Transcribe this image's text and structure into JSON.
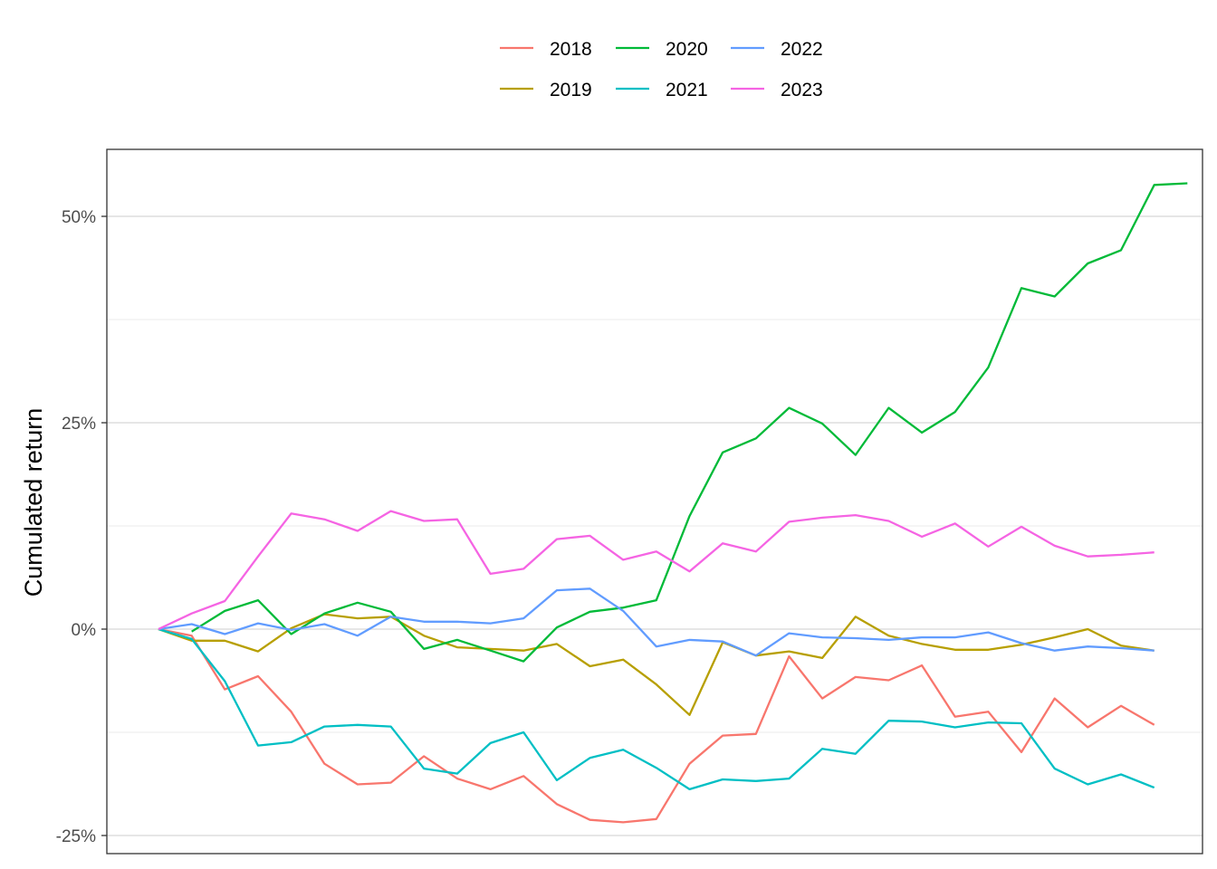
{
  "chart_data": {
    "type": "line",
    "title": "",
    "xlabel": "",
    "ylabel": "Cumulated return",
    "ylim": [
      -0.25,
      0.58
    ],
    "xlim": [
      1,
      31
    ],
    "y_ticks": [
      {
        "value": -0.25,
        "label": "-25%"
      },
      {
        "value": 0,
        "label": "0%"
      },
      {
        "value": 0.25,
        "label": "25%"
      },
      {
        "value": 0.5,
        "label": "50%"
      }
    ],
    "y_minor_gridlines": [
      -0.125,
      0.125,
      0.375
    ],
    "grid": true,
    "x_axis_labels": false,
    "legend": {
      "position": "top",
      "columns": 3
    },
    "series": [
      {
        "name": "2018",
        "color": "#F8766D",
        "x_start": 1,
        "values": [
          0,
          -0.008,
          -0.073,
          -0.057,
          -0.1,
          -0.163,
          -0.188,
          -0.186,
          -0.154,
          -0.181,
          -0.194,
          -0.178,
          -0.212,
          -0.231,
          -0.234,
          -0.23,
          -0.163,
          -0.129,
          -0.127,
          -0.033,
          -0.084,
          -0.058,
          -0.062,
          -0.044,
          -0.106,
          -0.1,
          -0.149,
          -0.084,
          -0.119,
          -0.093,
          -0.116
        ]
      },
      {
        "name": "2019",
        "color": "#B79F00",
        "x_start": 1,
        "values": [
          0,
          -0.014,
          -0.014,
          -0.027,
          0.001,
          0.018,
          0.013,
          0.015,
          -0.008,
          -0.022,
          -0.024,
          -0.026,
          -0.018,
          -0.045,
          -0.037,
          -0.067,
          -0.104,
          -0.016,
          -0.032,
          -0.027,
          -0.035,
          0.015,
          -0.008,
          -0.018,
          -0.025,
          -0.025,
          -0.019,
          -0.01,
          0,
          -0.02,
          -0.026
        ]
      },
      {
        "name": "2020",
        "color": "#00BA38",
        "x_start": 2,
        "values": [
          -0.003,
          0.022,
          0.035,
          -0.006,
          0.019,
          0.032,
          0.021,
          -0.024,
          -0.013,
          -0.026,
          -0.039,
          0.002,
          0.021,
          0.026,
          0.035,
          0.137,
          0.214,
          0.231,
          0.268,
          0.249,
          0.211,
          0.268,
          0.238,
          0.263,
          0.317,
          0.413,
          0.403,
          0.443,
          0.459,
          0.538,
          0.54
        ]
      },
      {
        "name": "2021",
        "color": "#00BFC4",
        "x_start": 1,
        "values": [
          0,
          -0.012,
          -0.063,
          -0.141,
          -0.137,
          -0.118,
          -0.116,
          -0.118,
          -0.169,
          -0.175,
          -0.138,
          -0.125,
          -0.183,
          -0.156,
          -0.146,
          -0.168,
          -0.194,
          -0.182,
          -0.184,
          -0.181,
          -0.145,
          -0.151,
          -0.111,
          -0.112,
          -0.119,
          -0.113,
          -0.114,
          -0.169,
          -0.188,
          -0.176,
          -0.192
        ]
      },
      {
        "name": "2022",
        "color": "#619CFF",
        "x_start": 1,
        "values": [
          0,
          0.006,
          -0.006,
          0.007,
          -0.001,
          0.006,
          -0.008,
          0.015,
          0.009,
          0.009,
          0.007,
          0.013,
          0.047,
          0.049,
          0.022,
          -0.021,
          -0.013,
          -0.015,
          -0.032,
          -0.005,
          -0.01,
          -0.011,
          -0.013,
          -0.01,
          -0.01,
          -0.004,
          -0.017,
          -0.026,
          -0.021,
          -0.023,
          -0.026
        ]
      },
      {
        "name": "2023",
        "color": "#F564E3",
        "x_start": 1,
        "values": [
          0,
          0.019,
          0.034,
          0.088,
          0.14,
          0.133,
          0.119,
          0.143,
          0.131,
          0.133,
          0.067,
          0.073,
          0.109,
          0.113,
          0.084,
          0.094,
          0.07,
          0.104,
          0.094,
          0.13,
          0.135,
          0.138,
          0.131,
          0.112,
          0.128,
          0.1,
          0.124,
          0.101,
          0.088,
          0.09,
          0.093
        ]
      }
    ]
  }
}
